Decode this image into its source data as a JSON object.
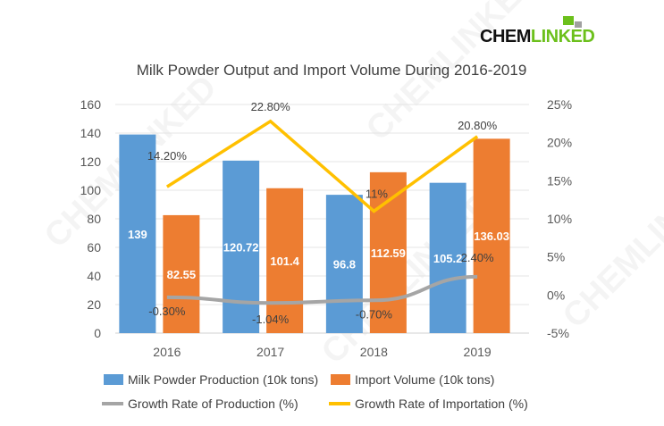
{
  "logo": {
    "part1": "CHEM",
    "part2": "LINKED"
  },
  "watermark": "CHEMLINKED",
  "chart_data": {
    "type": "bar+line",
    "title": "Milk Powder Output and Import Volume During 2016-2019",
    "categories": [
      "2016",
      "2017",
      "2018",
      "2019"
    ],
    "y_left": {
      "range": [
        0,
        160
      ],
      "ticks": [
        0,
        20,
        40,
        60,
        80,
        100,
        120,
        140,
        160
      ]
    },
    "y_right": {
      "range": [
        -5,
        25
      ],
      "ticks": [
        "-5%",
        "0%",
        "5%",
        "10%",
        "15%",
        "20%",
        "25%"
      ]
    },
    "grid": true,
    "legend_position": "bottom",
    "series": [
      {
        "name": "Milk Powder Production (10k tons)",
        "type": "bar",
        "axis": "left",
        "color": "#5b9bd5",
        "values": [
          139,
          120.72,
          96.8,
          105.2
        ],
        "labels": [
          "139",
          "120.72",
          "96.8",
          "105.2"
        ]
      },
      {
        "name": "Import Volume (10k tons)",
        "type": "bar",
        "axis": "left",
        "color": "#ed7d31",
        "values": [
          82.55,
          101.4,
          112.59,
          136.03
        ],
        "labels": [
          "82.55",
          "101.4",
          "112.59",
          "136.03"
        ]
      },
      {
        "name": "Growth Rate of Production (%)",
        "type": "line",
        "axis": "right",
        "color": "#a5a5a5",
        "values": [
          -0.3,
          -1.04,
          -0.7,
          2.4
        ],
        "labels": [
          "-0.30%",
          "-1.04%",
          "-0.70%",
          "2.40%"
        ]
      },
      {
        "name": "Growth Rate of Importation (%)",
        "type": "line",
        "axis": "right",
        "color": "#ffc000",
        "values": [
          14.2,
          22.8,
          11,
          20.8
        ],
        "labels": [
          "14.20%",
          "22.80%",
          "11%",
          "20.80%"
        ]
      }
    ]
  }
}
